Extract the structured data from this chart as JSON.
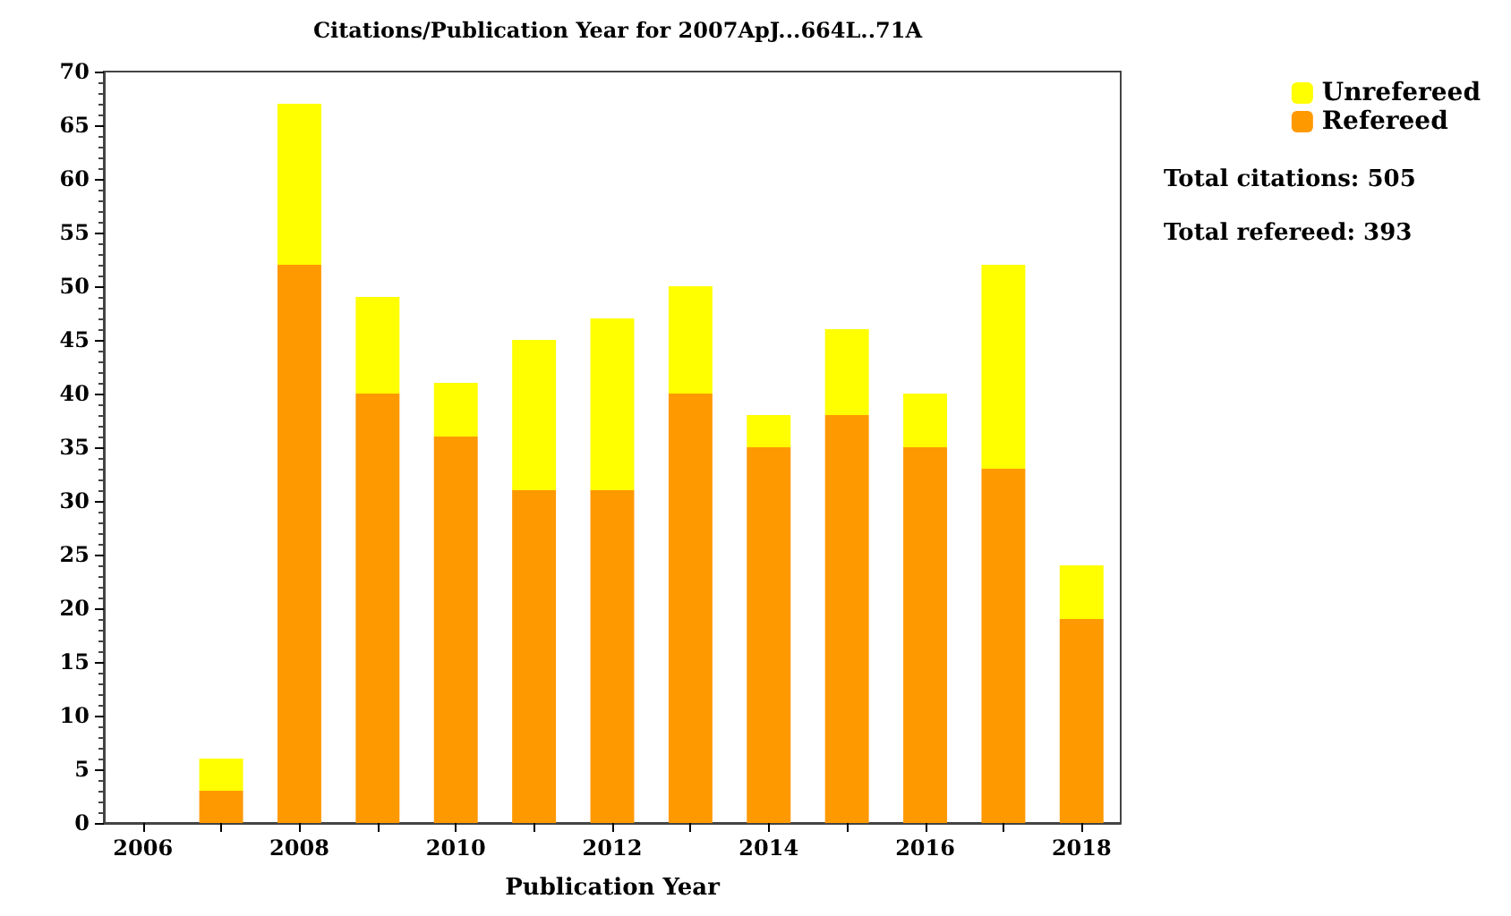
{
  "chart_data": {
    "type": "bar",
    "title": "Citations/Publication Year for 2007ApJ...664L..71A",
    "xlabel": "Publication Year",
    "categories": [
      "2006",
      null,
      "2008",
      null,
      "2010",
      null,
      "2012",
      null,
      "2014",
      null,
      "2016",
      null,
      "2018"
    ],
    "series": [
      {
        "name": "Refereed",
        "color": "#ff9900",
        "values": [
          0,
          3,
          52,
          40,
          36,
          31,
          31,
          40,
          35,
          38,
          35,
          33,
          19
        ]
      },
      {
        "name": "Unrefereed",
        "color": "#ffff00",
        "values": [
          0,
          3,
          15,
          9,
          5,
          14,
          16,
          10,
          3,
          8,
          5,
          19,
          5
        ]
      }
    ],
    "stacked": true,
    "ylim": [
      0,
      70
    ],
    "yticks": [
      0,
      5,
      10,
      15,
      20,
      25,
      30,
      35,
      40,
      45,
      50,
      55,
      60,
      65,
      70
    ],
    "grid": false,
    "legend": "top right",
    "annotations": [
      "Total citations: 505",
      "Total refereed: 393"
    ]
  }
}
